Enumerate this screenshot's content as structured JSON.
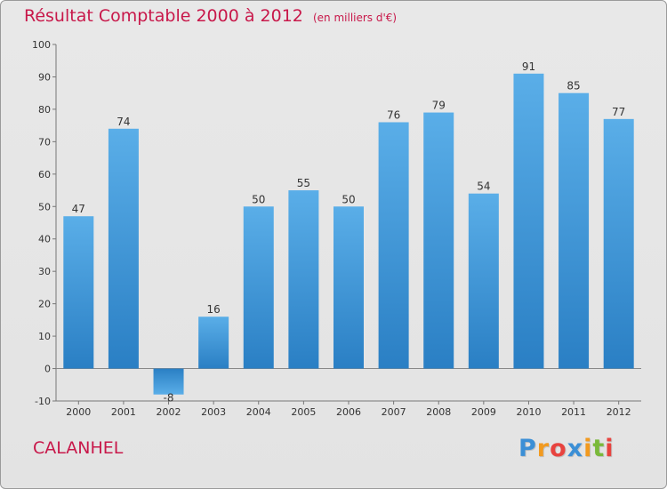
{
  "chart_data": {
    "type": "bar",
    "title": "Résultat Comptable 2000 à 2012",
    "subtitle": "(en milliers d'€)",
    "categories": [
      "2000",
      "2001",
      "2002",
      "2003",
      "2004",
      "2005",
      "2006",
      "2007",
      "2008",
      "2009",
      "2010",
      "2011",
      "2012"
    ],
    "values": [
      47,
      74,
      -8,
      16,
      50,
      55,
      50,
      76,
      79,
      54,
      91,
      85,
      77
    ],
    "data_labels": [
      "47",
      "74",
      "-8",
      "16",
      "50",
      "55",
      "50",
      "76",
      "79",
      "54",
      "91",
      "85",
      "77"
    ],
    "ylim": [
      -10,
      100
    ],
    "yticks": [
      -10,
      0,
      10,
      20,
      30,
      40,
      50,
      60,
      70,
      80,
      90,
      100
    ],
    "ytick_labels": [
      "-10",
      "0",
      "10",
      "20",
      "30",
      "40",
      "50",
      "60",
      "70",
      "80",
      "90",
      "100"
    ],
    "grid": false,
    "legend": "none",
    "bar_color_top": "#5aaee8",
    "bar_color_bottom": "#2a7fc4",
    "negative_bar_color": "#3d8ed0"
  },
  "footer": {
    "place_name": "CALANHEL",
    "logo_text": "Proxiti",
    "logo_letters": [
      {
        "ch": "P",
        "color": "#3b8fd6"
      },
      {
        "ch": "r",
        "color": "#f29a1f"
      },
      {
        "ch": "o",
        "color": "#e8433f"
      },
      {
        "ch": "x",
        "color": "#3b8fd6"
      },
      {
        "ch": "i",
        "color": "#f29a1f"
      },
      {
        "ch": "t",
        "color": "#7ab93a"
      },
      {
        "ch": "i",
        "color": "#e8433f"
      }
    ]
  },
  "colors": {
    "title": "#c8184a",
    "background": "#e5e5e5",
    "axis": "#555555"
  }
}
